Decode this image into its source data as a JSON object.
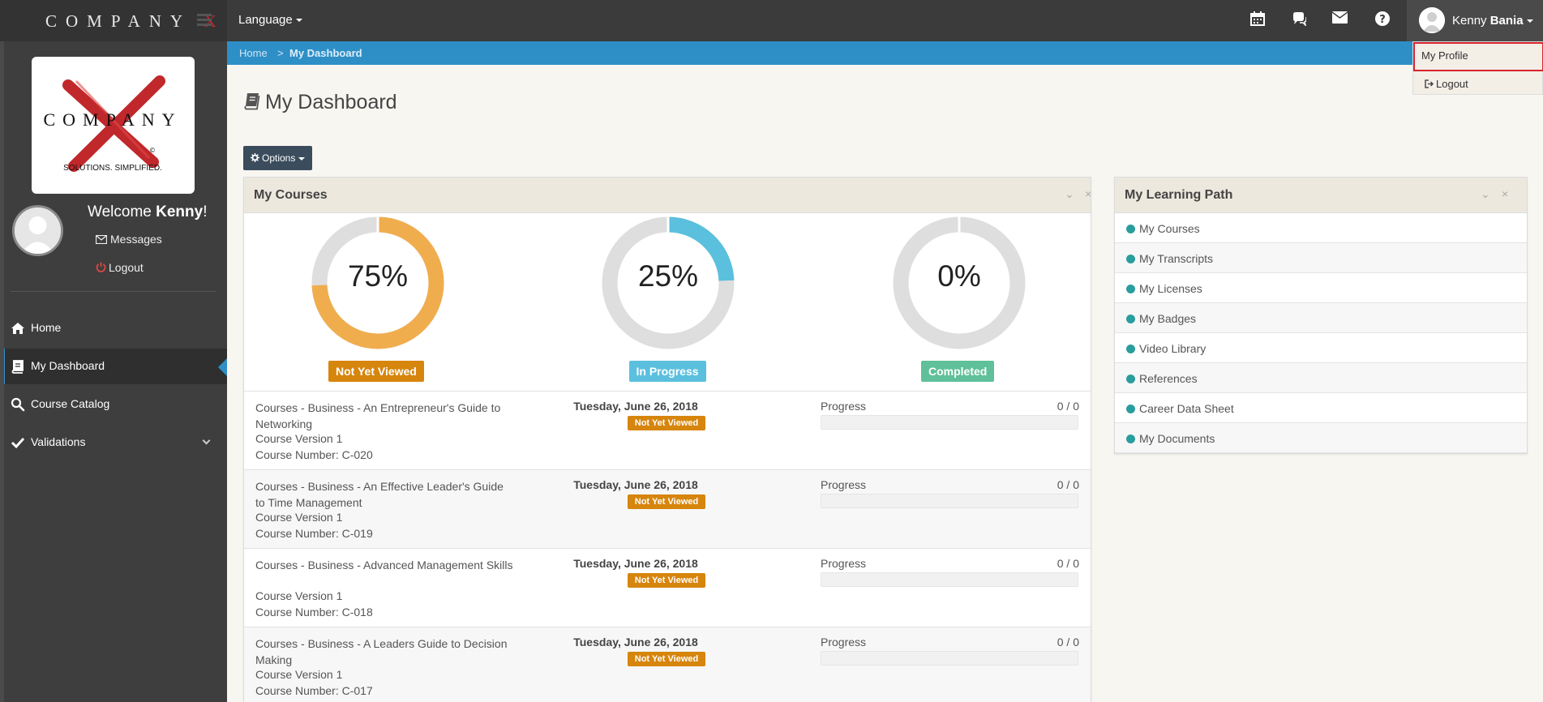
{
  "header": {
    "brand": "COMPANY",
    "brand_x": "X",
    "language_label": "Language",
    "user_first": "Kenny",
    "user_last": "Bania"
  },
  "user_menu": {
    "items": [
      {
        "label": "My Profile"
      },
      {
        "label": "Logout"
      }
    ]
  },
  "sidebar": {
    "welcome_prefix": "Welcome ",
    "welcome_name": "Kenny",
    "welcome_suffix": "!",
    "messages_label": "Messages",
    "logout_label": "Logout",
    "logo": {
      "top_text": "COMPANY",
      "tagline": "SOLUTIONS. SIMPLIFIED.",
      "mark": "©"
    },
    "nav": [
      {
        "label": "Home",
        "icon": "home-icon"
      },
      {
        "label": "My Dashboard",
        "icon": "book-icon",
        "active": true
      },
      {
        "label": "Course Catalog",
        "icon": "search-icon"
      },
      {
        "label": "Validations",
        "icon": "check-icon"
      }
    ]
  },
  "breadcrumb": {
    "home": "Home",
    "separator": ">",
    "current": "My Dashboard"
  },
  "page": {
    "title": "My Dashboard",
    "options_label": "Options"
  },
  "courses_panel": {
    "title": "My Courses",
    "collapse_glyph": "⌄",
    "close_glyph": "×",
    "stats": [
      {
        "pct_text": "75%",
        "value": 0.75,
        "label": "Not Yet Viewed",
        "color": "#f0ad4e",
        "label_color": "#d6850d"
      },
      {
        "pct_text": "25%",
        "value": 0.25,
        "label": "In Progress",
        "color": "#5bc0de",
        "label_color": "#5bc0de"
      },
      {
        "pct_text": "0%",
        "value": 0.0,
        "label": "Completed",
        "color": "#5cb85c",
        "label_color": "#5fc09a"
      }
    ],
    "rows": [
      {
        "title": "Courses - Business - An Entrepreneur's Guide to Networking",
        "version": "Course Version 1",
        "number": "Course Number: C-020",
        "date": "Tuesday, June 26, 2018",
        "status": "Not Yet Viewed",
        "progress_label": "Progress",
        "progress_count": "0 / 0",
        "progress_value": 0.0
      },
      {
        "title": "Courses - Business - An Effective Leader's Guide to Time Management",
        "version": "Course Version 1",
        "number": "Course Number: C-019",
        "date": "Tuesday, June 26, 2018",
        "status": "Not Yet Viewed",
        "progress_label": "Progress",
        "progress_count": "0 / 0",
        "progress_value": 0.0
      },
      {
        "title": "Courses - Business - Advanced Management Skills",
        "version": "Course Version 1",
        "number": "Course Number: C-018",
        "date": "Tuesday, June 26, 2018",
        "status": "Not Yet Viewed",
        "progress_label": "Progress",
        "progress_count": "0 / 0",
        "progress_value": 0.0
      },
      {
        "title": "Courses - Business - A Leaders Guide to Decision Making",
        "version": "Course Version 1",
        "number": "Course Number: C-017",
        "date": "Tuesday, June 26, 2018",
        "status": "Not Yet Viewed",
        "progress_label": "Progress",
        "progress_count": "0 / 0",
        "progress_value": 0.0
      }
    ]
  },
  "learning_panel": {
    "title": "My Learning Path",
    "collapse_glyph": "⌄",
    "close_glyph": "×",
    "items": [
      {
        "label": "My Courses"
      },
      {
        "label": "My Transcripts"
      },
      {
        "label": "My Licenses"
      },
      {
        "label": "My Badges"
      },
      {
        "label": "Video Library"
      },
      {
        "label": "References"
      },
      {
        "label": "Career Data Sheet"
      },
      {
        "label": "My Documents"
      }
    ]
  }
}
